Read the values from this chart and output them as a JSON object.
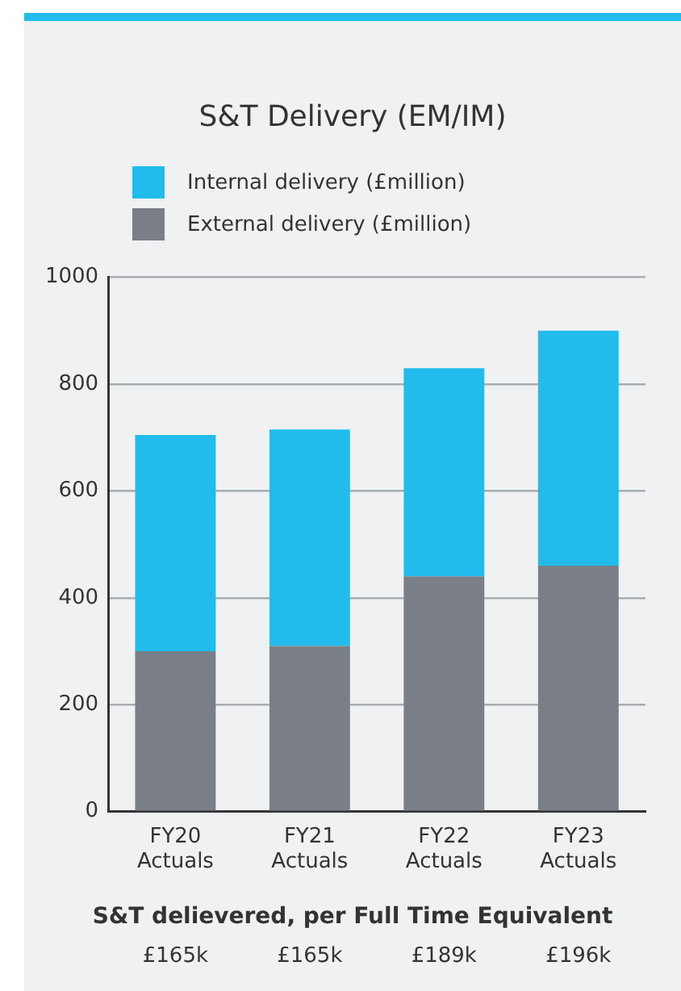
{
  "chart_data": {
    "type": "bar",
    "title": "S&T Delivery (EM/IM)",
    "categories": [
      "FY20\nActuals",
      "FY21\nActuals",
      "FY22\nActuals",
      "FY23\nActuals"
    ],
    "stacked": true,
    "series": [
      {
        "name": "External delivery (£million)",
        "color": "#7a7f87",
        "values": [
          300,
          310,
          440,
          460
        ]
      },
      {
        "name": "Internal delivery (£million)",
        "color": "#22bcec",
        "values": [
          405,
          405,
          390,
          440
        ]
      }
    ],
    "ylim": [
      0,
      1000
    ],
    "yticks": [
      0,
      200,
      400,
      600,
      800,
      1000
    ],
    "grid": "y",
    "legend": "top left",
    "annotations": [
      "S&T delievered, per Full Time Equivalent",
      "£165k",
      "£165k",
      "£189k",
      "£196k"
    ]
  }
}
